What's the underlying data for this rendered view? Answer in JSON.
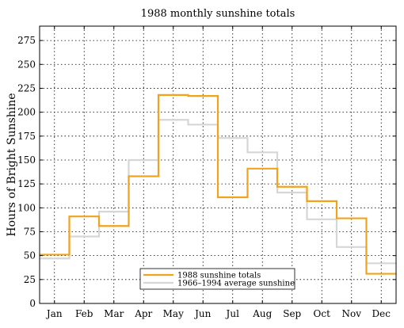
{
  "chart_data": {
    "type": "line",
    "step": "mid",
    "title": "1988 monthly sunshine totals",
    "xlabel": "",
    "ylabel": "Hours of Bright Sunshine",
    "categories": [
      "Jan",
      "Feb",
      "Mar",
      "Apr",
      "May",
      "Jun",
      "Jul",
      "Aug",
      "Sep",
      "Oct",
      "Nov",
      "Dec"
    ],
    "ylim": [
      0,
      290
    ],
    "yticks": [
      0,
      25,
      50,
      75,
      100,
      125,
      150,
      175,
      200,
      225,
      250,
      275
    ],
    "ytick_labels": [
      "0",
      "25",
      "50",
      "75",
      "100",
      "125",
      "150",
      "175",
      "200",
      "225",
      "250",
      "275"
    ],
    "grid": true,
    "legend_position": "bottom-center",
    "series": [
      {
        "name": "1988 sunshine totals",
        "color": "#f0a31c",
        "values": [
          51,
          91,
          81,
          133,
          218,
          217,
          111,
          141,
          122,
          107,
          89,
          31
        ]
      },
      {
        "name": "1966–1994 average sunshine",
        "color": "#d6d6d6",
        "values": [
          47,
          70,
          96,
          150,
          192,
          187,
          173,
          158,
          116,
          88,
          59,
          42
        ]
      }
    ]
  }
}
